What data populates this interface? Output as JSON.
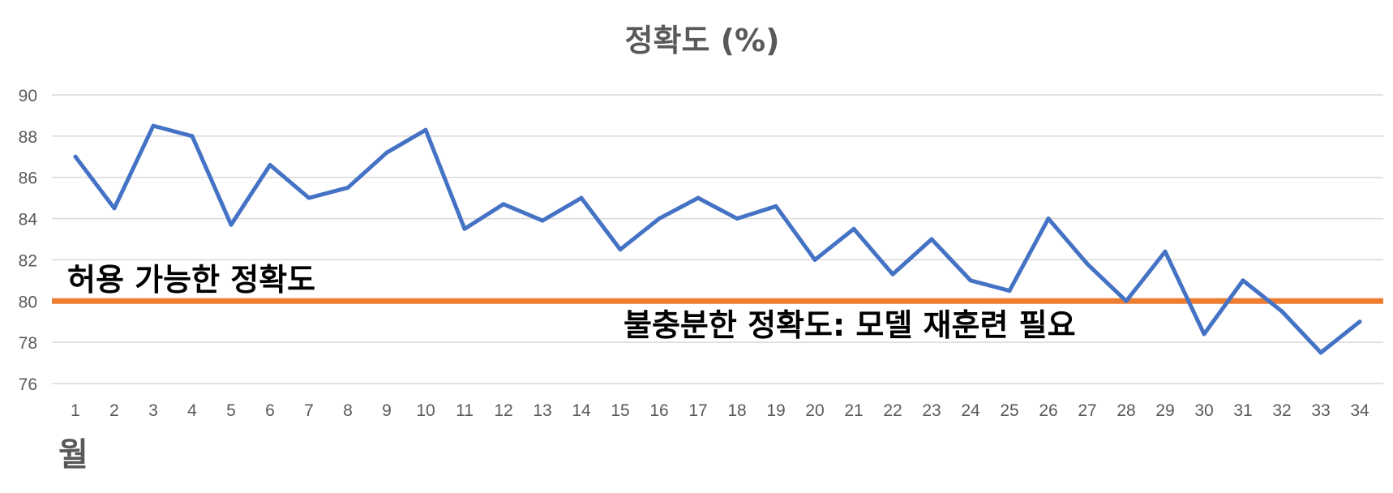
{
  "chart_data": {
    "type": "line",
    "title": "정확도 (%)",
    "xlabel": "월",
    "ylabel": "",
    "ylim": [
      76,
      90
    ],
    "yticks": [
      76,
      78,
      80,
      82,
      84,
      86,
      88,
      90
    ],
    "grid": true,
    "categories": [
      "1",
      "2",
      "3",
      "4",
      "5",
      "6",
      "7",
      "8",
      "9",
      "10",
      "11",
      "12",
      "13",
      "14",
      "15",
      "16",
      "17",
      "18",
      "19",
      "20",
      "21",
      "22",
      "23",
      "24",
      "25",
      "26",
      "27",
      "28",
      "29",
      "30",
      "31",
      "32",
      "33",
      "34"
    ],
    "series": [
      {
        "color": "#4472C4",
        "values": [
          87,
          84.5,
          88.5,
          88,
          83.7,
          86.6,
          85,
          85.5,
          87.2,
          88.3,
          83.5,
          84.7,
          83.9,
          85,
          82.5,
          84,
          85,
          84,
          84.6,
          82,
          83.5,
          81.3,
          83,
          81,
          80.5,
          84,
          81.8,
          80,
          82.4,
          78.4,
          81,
          79.5,
          77.5,
          79
        ]
      }
    ],
    "threshold": {
      "value": 80,
      "color": "#ED7D31"
    },
    "annotations": {
      "acceptable": "허용 가능한 정확도",
      "insufficient": "불충분한 정확도: 모델 재훈련 필요"
    }
  }
}
